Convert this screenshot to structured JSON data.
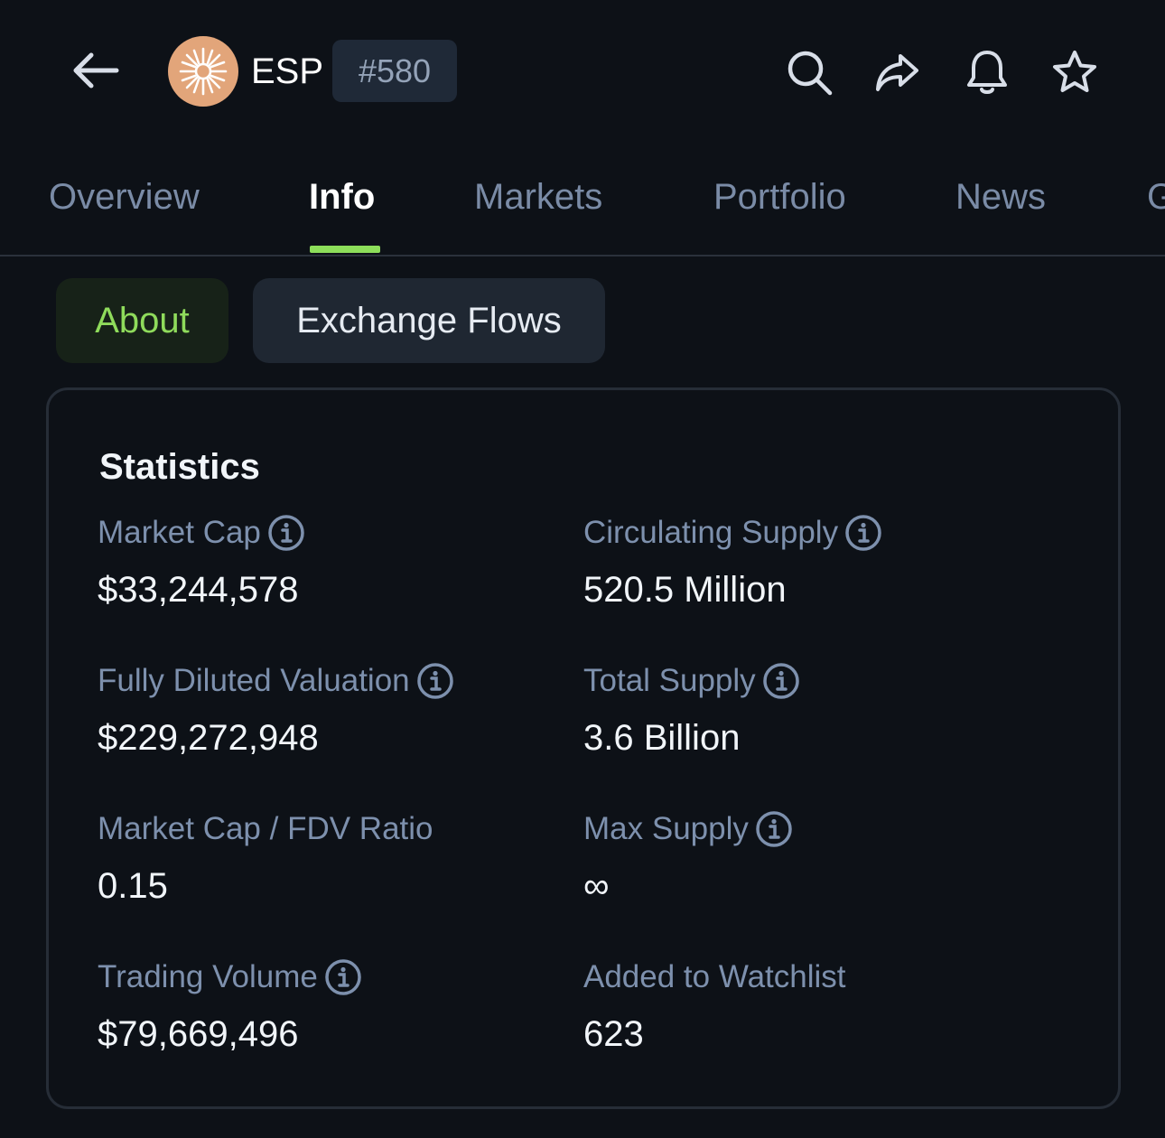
{
  "header": {
    "coin_symbol": "ESP",
    "rank": "#580",
    "icons": [
      "back-arrow-icon",
      "search-icon",
      "share-icon",
      "bell-icon",
      "star-icon"
    ]
  },
  "tabs": [
    {
      "label": "Overview",
      "active": false
    },
    {
      "label": "Info",
      "active": true
    },
    {
      "label": "Markets",
      "active": false
    },
    {
      "label": "Portfolio",
      "active": false
    },
    {
      "label": "News",
      "active": false
    },
    {
      "label": "G",
      "active": false
    }
  ],
  "subtabs": {
    "about": "About",
    "exchange_flows": "Exchange Flows"
  },
  "statistics": {
    "title": "Statistics",
    "items": [
      {
        "label": "Market Cap",
        "value": "$33,244,578",
        "has_info": true
      },
      {
        "label": "Circulating Supply",
        "value": "520.5 Million",
        "has_info": true
      },
      {
        "label": "Fully Diluted Valuation",
        "value": "$229,272,948",
        "has_info": true
      },
      {
        "label": "Total Supply",
        "value": "3.6 Billion",
        "has_info": true
      },
      {
        "label": "Market Cap / FDV Ratio",
        "value": "0.15",
        "has_info": false
      },
      {
        "label": "Max Supply",
        "value": "∞",
        "has_info": true
      },
      {
        "label": "Trading Volume",
        "value": "$79,669,496",
        "has_info": true
      },
      {
        "label": "Added to Watchlist",
        "value": "623",
        "has_info": false
      }
    ]
  },
  "colors": {
    "background": "#0d1117",
    "accent_green": "#8dde5a",
    "muted_label": "#7d90ad",
    "coin_logo": "#e2a57a"
  }
}
